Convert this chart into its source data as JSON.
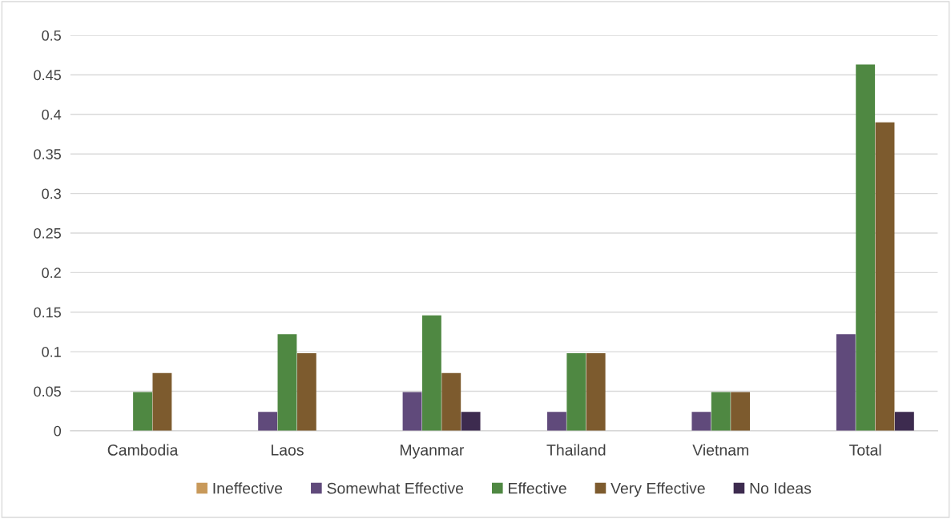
{
  "chart_data": {
    "type": "bar",
    "categories": [
      "Cambodia",
      "Laos",
      "Myanmar",
      "Thailand",
      "Vietnam",
      "Total"
    ],
    "series": [
      {
        "name": "Ineffective",
        "color": "#c8995a",
        "values": [
          0,
          0,
          0,
          0,
          0,
          0
        ]
      },
      {
        "name": "Somewhat Effective",
        "color": "#604a7b",
        "values": [
          0,
          0.024,
          0.049,
          0.024,
          0.024,
          0.122
        ]
      },
      {
        "name": "Effective",
        "color": "#4f8842",
        "values": [
          0.049,
          0.122,
          0.146,
          0.098,
          0.049,
          0.463
        ]
      },
      {
        "name": "Very Effective",
        "color": "#7d5b2e",
        "values": [
          0.073,
          0.098,
          0.073,
          0.098,
          0.049,
          0.39
        ]
      },
      {
        "name": "No Ideas",
        "color": "#3d2b4f",
        "values": [
          0,
          0,
          0.024,
          0,
          0,
          0.024
        ]
      }
    ],
    "ylim": [
      0,
      0.5
    ],
    "yticks": [
      0,
      0.05,
      0.1,
      0.15,
      0.2,
      0.25,
      0.3,
      0.35,
      0.4,
      0.45,
      0.5
    ],
    "grid": "y",
    "legend": "bottom"
  }
}
